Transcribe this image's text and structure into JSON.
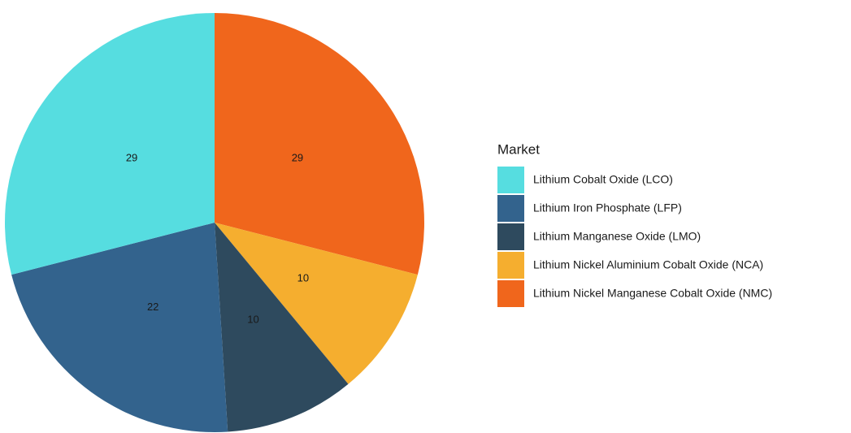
{
  "chart_data": {
    "type": "pie",
    "legend_title": "Market",
    "categories": [
      "Lithium Cobalt Oxide (LCO)",
      "Lithium Iron Phosphate (LFP)",
      "Lithium Manganese Oxide (LMO)",
      "Lithium Nickel Aluminium Cobalt Oxide (NCA)",
      "Lithium Nickel Manganese Cobalt Oxide (NMC)"
    ],
    "values": [
      29,
      22,
      10,
      10,
      29
    ],
    "colors": [
      "#56dde0",
      "#33638d",
      "#2e4a5e",
      "#f5ae2f",
      "#f0661c"
    ],
    "legend": "right"
  }
}
